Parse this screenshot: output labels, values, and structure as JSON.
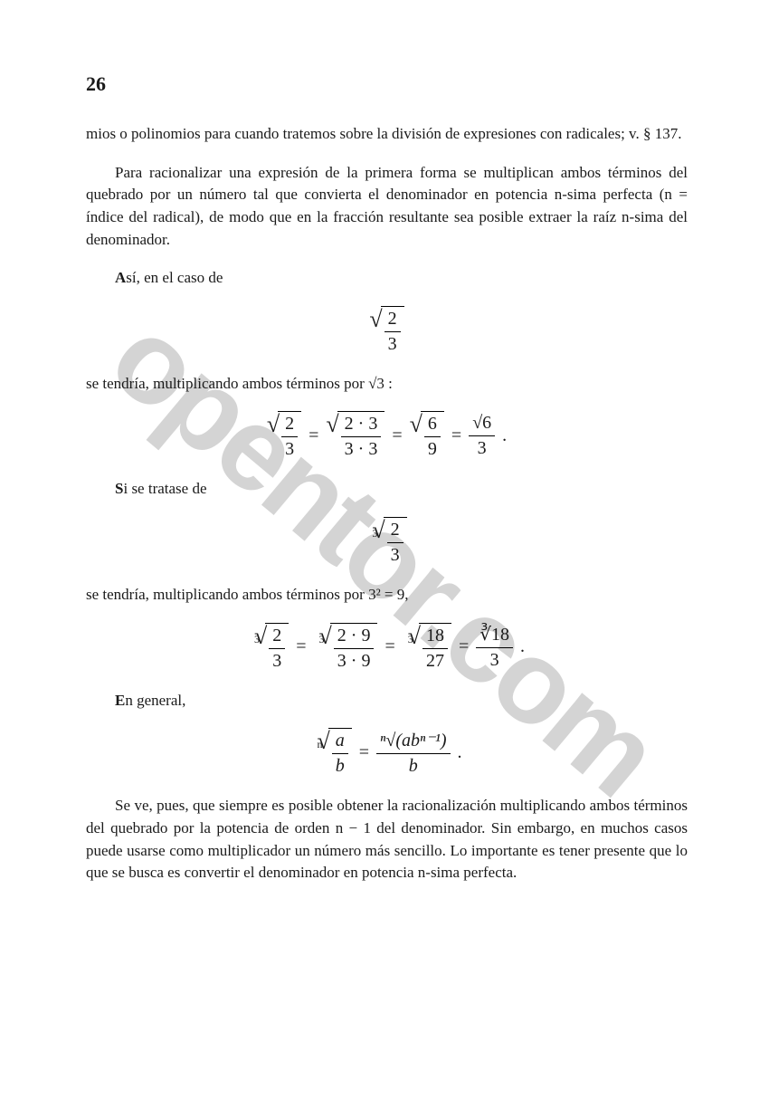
{
  "page_number": "26",
  "watermark_text": "opentor.com",
  "watermark_color": "#b8b8b8",
  "text_color": "#1a1a1a",
  "background_color": "#ffffff",
  "body_fontsize": 17,
  "eq_fontsize": 20,
  "p1": "mios o polinomios para cuando tratemos sobre la división de expresiones con radicales; v. § 137.",
  "p2": "Para racionalizar una expresión de la primera forma se multiplican ambos términos del quebrado por un número tal que convierta el denominador en potencia n-sima perfecta (n = índice del radical), de modo que en la fracción resultante sea posible extraer la raíz n-sima del denominador.",
  "p3": "Así, en el caso de",
  "p4_a": "se tendría, multiplicando ambos términos por ",
  "p4_b": "√3 :",
  "p5": "Si se tratase de",
  "p6": "se tendría, multiplicando ambos términos por 3² = 9,",
  "p7": "En general,",
  "p8": "Se ve, pues, que siempre es posible obtener la racionalización multiplicando ambos términos del quebrado por la potencia de orden n − 1 del denominador. Sin embargo, en muchos casos puede usarse como multiplicador un número más sencillo. Lo importante es tener presente que lo que se busca es convertir el denominador en potencia n-sima perfecta.",
  "eq1": {
    "num": "2",
    "den": "3"
  },
  "eq2": {
    "t1": {
      "num": "2",
      "den": "3"
    },
    "t2": {
      "num": "2 · 3",
      "den": "3 · 3"
    },
    "t3": {
      "num": "6",
      "den": "9"
    },
    "t4": {
      "num": "√6",
      "den": "3"
    }
  },
  "eq3": {
    "idx": "3",
    "num": "2",
    "den": "3"
  },
  "eq4": {
    "idx": "3",
    "t1": {
      "num": "2",
      "den": "3"
    },
    "t2": {
      "num": "2 · 9",
      "den": "3 · 9"
    },
    "t3": {
      "num": "18",
      "den": "27"
    },
    "t4": {
      "num": "∛18",
      "den": "3"
    }
  },
  "eq5": {
    "idx": "n",
    "lhs": {
      "num": "a",
      "den": "b"
    },
    "rhs_num": "ⁿ√(abⁿ⁻¹)",
    "rhs_den": "b"
  }
}
